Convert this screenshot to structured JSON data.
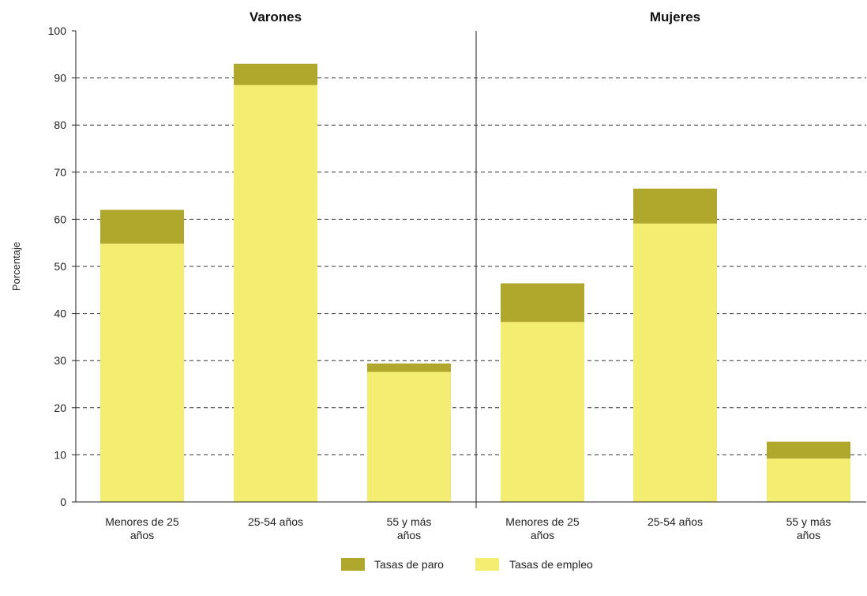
{
  "chart_data": {
    "type": "bar",
    "stacked": true,
    "ylabel": "Porcentaje",
    "ylim": [
      0,
      100
    ],
    "yticks": [
      0,
      10,
      20,
      30,
      40,
      50,
      60,
      70,
      80,
      90,
      100
    ],
    "grid": true,
    "legend_position": "bottom",
    "colors": {
      "paro": "#afa82d",
      "empleo": "#f3ee72"
    },
    "series": [
      {
        "key": "paro",
        "name": "Tasas de paro"
      },
      {
        "key": "empleo",
        "name": "Tasas de empleo"
      }
    ],
    "panels": [
      {
        "title": "Varones",
        "categories": [
          [
            "Menores de 25",
            "años"
          ],
          [
            "25-54 años"
          ],
          [
            "55 y más",
            "años"
          ]
        ],
        "empleo": [
          54.8,
          88.5,
          27.6
        ],
        "paro": [
          7.2,
          4.5,
          1.8
        ]
      },
      {
        "title": "Mujeres",
        "categories": [
          [
            "Menores de 25",
            "años"
          ],
          [
            "25-54 años"
          ],
          [
            "55 y más",
            "años"
          ]
        ],
        "empleo": [
          38.2,
          59.1,
          9.2
        ],
        "paro": [
          8.2,
          7.4,
          3.6
        ]
      }
    ]
  }
}
